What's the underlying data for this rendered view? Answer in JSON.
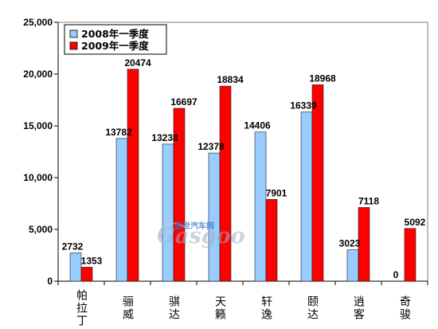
{
  "chart_data": {
    "type": "bar",
    "categories": [
      "帕拉丁",
      "骊威",
      "骐达",
      "天籁",
      "轩逸",
      "颐达",
      "逍客",
      "奇骏"
    ],
    "series": [
      {
        "name": "2008年一季度",
        "color": "#99CCFF",
        "values": [
          2732,
          13782,
          13238,
          12378,
          14406,
          16339,
          3023,
          0
        ]
      },
      {
        "name": "2009年一季度",
        "color": "#FF0000",
        "values": [
          1353,
          20474,
          16697,
          18834,
          7901,
          18968,
          7118,
          5092
        ]
      }
    ],
    "ylim": [
      0,
      25000
    ],
    "yticks": [
      0,
      5000,
      10000,
      15000,
      20000,
      25000
    ],
    "ytick_labels": [
      "0",
      "5,000",
      "10,000",
      "15,000",
      "20,000",
      "25,000"
    ],
    "data_labels": true,
    "grid": false,
    "legend": "top-left"
  },
  "watermark": {
    "cn": "盖世汽车网",
    "en": "Gasgoo"
  }
}
